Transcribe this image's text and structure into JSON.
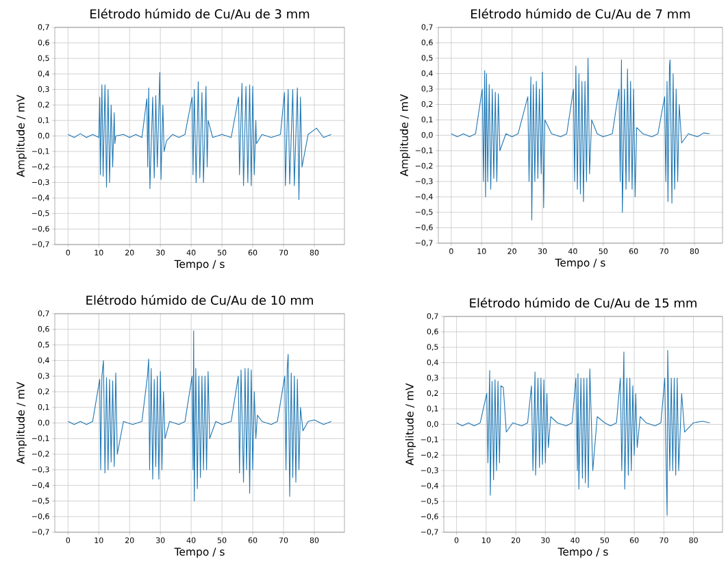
{
  "chart_data": [
    {
      "type": "line",
      "title": "Elétrodo húmido de Cu/Au de 3 mm",
      "xlabel": "Tempo / s",
      "ylabel": "Amplitude / mV",
      "color": "#1f77b4",
      "grid": true,
      "xlim": [
        -4.3,
        89.8
      ],
      "ylim": [
        -0.7,
        0.7
      ],
      "xticks": [
        0,
        10,
        20,
        30,
        40,
        50,
        60,
        70,
        80
      ],
      "yticks": [
        {
          "value": -0.7,
          "label": "−0,7"
        },
        {
          "value": -0.6,
          "label": "−0,6"
        },
        {
          "value": -0.5,
          "label": "−0,5"
        },
        {
          "value": -0.4,
          "label": "−0,4"
        },
        {
          "value": -0.3,
          "label": "−0,3"
        },
        {
          "value": -0.2,
          "label": "−0,2"
        },
        {
          "value": -0.1,
          "label": "−0,1"
        },
        {
          "value": 0,
          "label": "0,0"
        },
        {
          "value": 0.1,
          "label": "0,1"
        },
        {
          "value": 0.2,
          "label": "0,2"
        },
        {
          "value": 0.3,
          "label": "0,3"
        },
        {
          "value": 0.4,
          "label": "0,4"
        },
        {
          "value": 0.5,
          "label": "0,5"
        },
        {
          "value": 0.6,
          "label": "0,6"
        },
        {
          "value": 0.7,
          "label": "0,7"
        }
      ],
      "x": [
        0,
        2,
        4,
        6,
        8,
        10,
        10.3,
        10.5,
        11,
        11.4,
        12,
        12.5,
        13,
        13.5,
        14,
        14.5,
        15,
        15.2,
        15.5,
        18,
        20,
        22,
        24,
        25.6,
        25.9,
        26.2,
        26.6,
        27.5,
        28,
        28.5,
        29,
        29.8,
        30.2,
        30.8,
        31.2,
        32,
        34,
        36,
        38,
        40.3,
        40.6,
        41,
        41.6,
        42.3,
        42.8,
        43.5,
        44,
        44.8,
        45.2,
        45.5,
        47,
        50,
        53,
        55.4,
        55.7,
        56.5,
        57,
        57.8,
        58.4,
        59,
        59.5,
        60,
        60.5,
        61,
        61.2,
        63,
        66,
        69,
        70.3,
        70.6,
        71.5,
        72,
        73,
        73.5,
        74.5,
        75,
        75.5,
        76,
        78,
        80.7,
        83,
        85.5
      ],
      "values": [
        0.01,
        -0.01,
        0.015,
        -0.01,
        0.01,
        -0.01,
        0.25,
        -0.25,
        0.33,
        -0.26,
        0.33,
        -0.33,
        0.3,
        -0.3,
        0.2,
        -0.2,
        0.15,
        -0.05,
        0.0,
        0.01,
        -0.01,
        0.01,
        -0.01,
        0.24,
        -0.2,
        0.31,
        -0.34,
        0.25,
        -0.27,
        0.26,
        -0.2,
        0.41,
        -0.28,
        0.2,
        -0.1,
        -0.03,
        0.01,
        -0.01,
        0.01,
        0.25,
        -0.25,
        0.3,
        -0.3,
        0.35,
        -0.27,
        0.28,
        -0.3,
        0.32,
        -0.2,
        0.1,
        -0.01,
        0.01,
        -0.01,
        0.25,
        -0.25,
        0.34,
        -0.32,
        0.32,
        -0.3,
        0.33,
        -0.32,
        0.32,
        -0.25,
        0.1,
        -0.05,
        0.01,
        -0.01,
        0.01,
        0.28,
        -0.32,
        0.3,
        -0.31,
        0.3,
        -0.32,
        0.31,
        -0.41,
        0.25,
        -0.2,
        0.01,
        0.05,
        -0.01,
        0.01
      ]
    },
    {
      "type": "line",
      "title": "Elétrodo húmido de Cu/Au de 7 mm",
      "xlabel": "Tempo / s",
      "ylabel": "Amplitude / mV",
      "color": "#1f77b4",
      "grid": true,
      "xlim": [
        -4.25,
        89.25
      ],
      "ylim": [
        -0.7,
        0.7
      ],
      "xticks": [
        0,
        10,
        20,
        30,
        40,
        50,
        60,
        70,
        80
      ],
      "yticks": [
        {
          "value": -0.7,
          "label": "−0,7"
        },
        {
          "value": -0.6,
          "label": "−0,6"
        },
        {
          "value": -0.5,
          "label": "−0,5"
        },
        {
          "value": -0.4,
          "label": "−0,4"
        },
        {
          "value": -0.3,
          "label": "−0,3"
        },
        {
          "value": -0.2,
          "label": "−0,2"
        },
        {
          "value": -0.1,
          "label": "−0,1"
        },
        {
          "value": 0,
          "label": "0,0"
        },
        {
          "value": 0.1,
          "label": "0,1"
        },
        {
          "value": 0.2,
          "label": "0,2"
        },
        {
          "value": 0.3,
          "label": "0,3"
        },
        {
          "value": 0.4,
          "label": "0,4"
        },
        {
          "value": 0.5,
          "label": "0,5"
        },
        {
          "value": 0.6,
          "label": "0,6"
        },
        {
          "value": 0.7,
          "label": "0,7"
        }
      ],
      "x": [
        0,
        2,
        4,
        6,
        8,
        10.2,
        10.6,
        11,
        11.3,
        11.6,
        12,
        12.5,
        13,
        13.5,
        14,
        14.5,
        15,
        15.5,
        16,
        18,
        20,
        22,
        25.2,
        25.6,
        26.2,
        26.5,
        27,
        27.5,
        28,
        28.5,
        29,
        29.6,
        30,
        30.4,
        30.8,
        33,
        36,
        38,
        40.2,
        40.6,
        41,
        41.5,
        42,
        42.5,
        43,
        43.5,
        44,
        44.5,
        45,
        45.5,
        46.2,
        48,
        50,
        53,
        55.2,
        55.6,
        56,
        56.3,
        57,
        57.5,
        58,
        58.5,
        59,
        59.5,
        60,
        60.5,
        61,
        63,
        66,
        68,
        70.2,
        70.6,
        71,
        71.3,
        71.8,
        72,
        72.6,
        73,
        73.5,
        74,
        74.5,
        75,
        75.8,
        78,
        81,
        83,
        85
      ],
      "values": [
        0.01,
        -0.01,
        0.01,
        -0.01,
        0.01,
        0.3,
        -0.3,
        0.42,
        -0.4,
        0.4,
        -0.3,
        0.33,
        -0.35,
        0.3,
        -0.28,
        0.28,
        -0.3,
        0.27,
        -0.1,
        0.01,
        -0.01,
        0.01,
        0.25,
        -0.3,
        0.38,
        -0.55,
        0.33,
        -0.3,
        0.35,
        -0.28,
        0.3,
        -0.25,
        0.41,
        -0.47,
        0.1,
        0.01,
        -0.01,
        0.01,
        0.3,
        -0.3,
        0.45,
        -0.35,
        0.4,
        -0.38,
        0.35,
        -0.43,
        0.35,
        -0.3,
        0.5,
        -0.25,
        0.1,
        0.01,
        -0.01,
        0.01,
        0.3,
        -0.3,
        0.49,
        -0.5,
        0.3,
        -0.35,
        0.43,
        -0.3,
        0.35,
        -0.35,
        0.3,
        -0.4,
        0.05,
        0.01,
        -0.01,
        0.01,
        0.25,
        -0.3,
        0.35,
        -0.43,
        0.45,
        0.49,
        -0.44,
        0.4,
        -0.35,
        0.3,
        -0.3,
        0.2,
        -0.05,
        0.01,
        -0.01,
        0.015,
        0.01
      ]
    },
    {
      "type": "line",
      "title": "Elétrodo húmido de Cu/Au de 10 mm",
      "xlabel": "Tempo / s",
      "ylabel": "Amplitude / mV",
      "color": "#1f77b4",
      "grid": true,
      "xlim": [
        -4.3,
        89.8
      ],
      "ylim": [
        -0.7,
        0.7
      ],
      "xticks": [
        0,
        10,
        20,
        30,
        40,
        50,
        60,
        70,
        80
      ],
      "yticks": [
        {
          "value": -0.7,
          "label": "−0,7"
        },
        {
          "value": -0.6,
          "label": "−0,6"
        },
        {
          "value": -0.5,
          "label": "−0,5"
        },
        {
          "value": -0.4,
          "label": "−0,4"
        },
        {
          "value": -0.3,
          "label": "−0,3"
        },
        {
          "value": -0.2,
          "label": "−0,2"
        },
        {
          "value": -0.1,
          "label": "−0,1"
        },
        {
          "value": 0,
          "label": "0,0"
        },
        {
          "value": 0.1,
          "label": "0,1"
        },
        {
          "value": 0.2,
          "label": "0,2"
        },
        {
          "value": 0.3,
          "label": "0,3"
        },
        {
          "value": 0.4,
          "label": "0,4"
        },
        {
          "value": 0.5,
          "label": "0,5"
        },
        {
          "value": 0.6,
          "label": "0,6"
        },
        {
          "value": 0.7,
          "label": "0,7"
        }
      ],
      "x": [
        0,
        2,
        4,
        6,
        8,
        10.3,
        10.6,
        11,
        11.5,
        12,
        12.5,
        13,
        13.5,
        14,
        14.5,
        15,
        15.5,
        16,
        18,
        21,
        24,
        25.8,
        26.2,
        26.5,
        27,
        27.5,
        28,
        28.5,
        29,
        29.5,
        30,
        30.5,
        31,
        31.5,
        33,
        36,
        38,
        40.3,
        40.6,
        40.8,
        41,
        41.5,
        42,
        42.5,
        43,
        43.5,
        44,
        44.5,
        45,
        45.5,
        46,
        48,
        50,
        53,
        55.3,
        55.7,
        56.2,
        57,
        57.5,
        58,
        58.5,
        59,
        59.5,
        60,
        60.5,
        61,
        61.5,
        63,
        66,
        68,
        70.4,
        70.8,
        71.2,
        71.5,
        72,
        72.5,
        73,
        73.5,
        74,
        74.5,
        75,
        75.5,
        76.3,
        78,
        80,
        83,
        85.5
      ],
      "values": [
        0.01,
        -0.01,
        0.01,
        -0.01,
        0.01,
        0.28,
        -0.3,
        0.3,
        0.4,
        -0.32,
        0.29,
        -0.3,
        0.28,
        -0.25,
        0.27,
        -0.28,
        0.32,
        -0.2,
        0.01,
        -0.01,
        0.01,
        0.3,
        0.41,
        -0.3,
        0.35,
        -0.36,
        0.28,
        -0.28,
        0.3,
        -0.36,
        0.33,
        -0.3,
        0.2,
        -0.1,
        0.01,
        -0.01,
        0.01,
        0.3,
        -0.3,
        0.59,
        -0.5,
        0.35,
        -0.42,
        0.3,
        -0.35,
        0.3,
        -0.3,
        0.3,
        -0.3,
        0.33,
        -0.1,
        0.01,
        -0.01,
        0.01,
        0.3,
        -0.32,
        0.34,
        -0.38,
        0.35,
        -0.3,
        0.35,
        -0.45,
        0.34,
        -0.3,
        0.2,
        -0.1,
        0.05,
        0.01,
        -0.01,
        0.01,
        0.3,
        -0.3,
        0.35,
        0.44,
        -0.47,
        0.32,
        -0.35,
        0.3,
        -0.38,
        0.28,
        -0.3,
        0.1,
        -0.05,
        0.01,
        0.02,
        -0.01,
        0.01
      ]
    },
    {
      "type": "line",
      "title": "Elétrodo húmido de Cu/Au de 15 mm",
      "xlabel": "Tempo / s",
      "ylabel": "Amplitude / mV",
      "color": "#1f77b4",
      "grid": true,
      "xlim": [
        -4.3,
        89.8
      ],
      "ylim": [
        -0.7,
        0.7
      ],
      "xticks": [
        0,
        10,
        20,
        30,
        40,
        50,
        60,
        70,
        80
      ],
      "yticks": [
        {
          "value": -0.7,
          "label": "−0,7"
        },
        {
          "value": -0.6,
          "label": "−0,6"
        },
        {
          "value": -0.5,
          "label": "−0,5"
        },
        {
          "value": -0.4,
          "label": "−0,4"
        },
        {
          "value": -0.3,
          "label": "−0,3"
        },
        {
          "value": -0.2,
          "label": "−0,2"
        },
        {
          "value": -0.1,
          "label": "−0,1"
        },
        {
          "value": 0,
          "label": "0,0"
        },
        {
          "value": 0.1,
          "label": "0,1"
        },
        {
          "value": 0.2,
          "label": "0,2"
        },
        {
          "value": 0.3,
          "label": "0,3"
        },
        {
          "value": 0.4,
          "label": "0,4"
        },
        {
          "value": 0.5,
          "label": "0,5"
        },
        {
          "value": 0.6,
          "label": "0,6"
        },
        {
          "value": 0.7,
          "label": "0,7"
        }
      ],
      "x": [
        0,
        2,
        4,
        6,
        8,
        10.2,
        10.6,
        11.2,
        11.4,
        12,
        12.5,
        13,
        13.5,
        14,
        14.5,
        15,
        15.8,
        16.8,
        19,
        22,
        24,
        25.3,
        25.8,
        26.5,
        26.7,
        27.5,
        28,
        28.5,
        29,
        29.5,
        30,
        30.5,
        31,
        31.8,
        34,
        37,
        39,
        40.3,
        40.8,
        41,
        41.3,
        42,
        42.5,
        43,
        43.5,
        44,
        44.5,
        45,
        46,
        47.5,
        50,
        52,
        54,
        55.3,
        55.8,
        56.5,
        56.8,
        57.5,
        58,
        58.5,
        59,
        59.5,
        60,
        60.5,
        61,
        62,
        64,
        67,
        69,
        70.3,
        70.8,
        71.1,
        71.3,
        72,
        72.5,
        73,
        73.5,
        74,
        74.5,
        75,
        76,
        77,
        80,
        83,
        85.5
      ],
      "values": [
        0.01,
        -0.01,
        0.01,
        -0.01,
        0.01,
        0.2,
        -0.25,
        0.35,
        -0.46,
        0.28,
        -0.36,
        0.29,
        -0.3,
        0.28,
        -0.25,
        0.25,
        0.24,
        -0.05,
        0.01,
        -0.01,
        0.01,
        0.25,
        -0.3,
        0.34,
        -0.33,
        0.3,
        -0.28,
        0.3,
        -0.26,
        0.29,
        -0.25,
        0.2,
        -0.15,
        0.05,
        0.01,
        -0.01,
        0.01,
        0.3,
        -0.3,
        0.33,
        -0.42,
        0.3,
        -0.35,
        0.3,
        -0.38,
        0.3,
        -0.41,
        0.36,
        -0.3,
        0.05,
        0.01,
        -0.01,
        0.01,
        0.3,
        -0.3,
        0.47,
        -0.42,
        0.3,
        -0.33,
        0.3,
        -0.3,
        0.25,
        -0.2,
        0.2,
        -0.15,
        0.05,
        0.01,
        -0.01,
        0.01,
        0.3,
        -0.3,
        -0.59,
        0.48,
        -0.3,
        0.3,
        -0.3,
        0.3,
        -0.33,
        0.3,
        -0.3,
        0.2,
        -0.05,
        0.01,
        0.02,
        0.01
      ]
    }
  ]
}
